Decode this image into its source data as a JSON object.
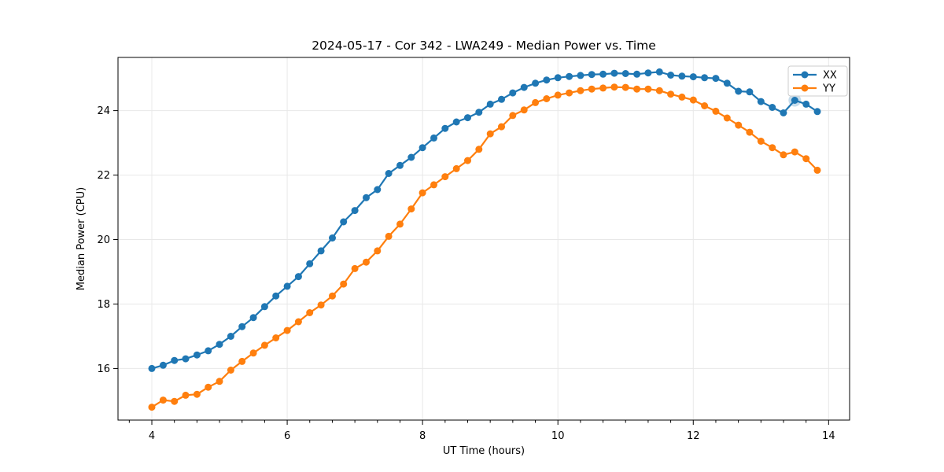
{
  "chart_data": {
    "type": "line",
    "title": "2024-05-17 - Cor 342 - LWA249 - Median Power vs. Time",
    "xlabel": "UT Time (hours)",
    "ylabel": "Median Power (CPU)",
    "xlim": [
      3.5,
      14.31
    ],
    "ylim": [
      14.4,
      25.65
    ],
    "xticks": [
      4,
      6,
      8,
      10,
      12,
      14
    ],
    "yticks": [
      16,
      18,
      20,
      22,
      24
    ],
    "minor_xticks_per_major": 6,
    "grid": true,
    "legend": {
      "position": "upper right",
      "entries": [
        "XX",
        "YY"
      ]
    },
    "x": [
      4.0,
      4.167,
      4.333,
      4.5,
      4.667,
      4.833,
      5.0,
      5.167,
      5.333,
      5.5,
      5.667,
      5.833,
      6.0,
      6.167,
      6.333,
      6.5,
      6.667,
      6.833,
      7.0,
      7.167,
      7.333,
      7.5,
      7.667,
      7.833,
      8.0,
      8.167,
      8.333,
      8.5,
      8.667,
      8.833,
      9.0,
      9.167,
      9.333,
      9.5,
      9.667,
      9.833,
      10.0,
      10.167,
      10.333,
      10.5,
      10.667,
      10.833,
      11.0,
      11.167,
      11.333,
      11.5,
      11.667,
      11.833,
      12.0,
      12.167,
      12.333,
      12.5,
      12.667,
      12.833,
      13.0,
      13.167,
      13.333,
      13.5,
      13.667,
      13.833
    ],
    "series": [
      {
        "name": "XX",
        "color": "#1f77b4",
        "values": [
          16.0,
          16.1,
          16.25,
          16.3,
          16.42,
          16.55,
          16.75,
          17.0,
          17.3,
          17.58,
          17.92,
          18.25,
          18.55,
          18.85,
          19.25,
          19.65,
          20.05,
          20.55,
          20.9,
          21.3,
          21.55,
          22.05,
          22.3,
          22.55,
          22.85,
          23.15,
          23.45,
          23.65,
          23.78,
          23.95,
          24.2,
          24.35,
          24.55,
          24.72,
          24.85,
          24.95,
          25.02,
          25.06,
          25.09,
          25.12,
          25.13,
          25.16,
          25.15,
          25.13,
          25.17,
          25.2,
          25.1,
          25.07,
          25.05,
          25.02,
          25.0,
          24.85,
          24.6,
          24.58,
          24.28,
          24.1,
          23.93,
          24.32,
          24.2,
          23.97
        ]
      },
      {
        "name": "YY",
        "color": "#ff7f0e",
        "values": [
          14.8,
          15.02,
          14.98,
          15.17,
          15.2,
          15.42,
          15.6,
          15.95,
          16.22,
          16.48,
          16.72,
          16.95,
          17.18,
          17.45,
          17.73,
          17.97,
          18.25,
          18.62,
          19.1,
          19.3,
          19.65,
          20.1,
          20.48,
          20.95,
          21.45,
          21.7,
          21.95,
          22.2,
          22.45,
          22.8,
          23.28,
          23.5,
          23.85,
          24.02,
          24.25,
          24.37,
          24.48,
          24.55,
          24.62,
          24.67,
          24.7,
          24.73,
          24.72,
          24.67,
          24.67,
          24.62,
          24.51,
          24.42,
          24.33,
          24.15,
          23.98,
          23.77,
          23.55,
          23.33,
          23.05,
          22.85,
          22.63,
          22.72,
          22.51,
          22.15
        ]
      }
    ],
    "highlight": {
      "series": "XX",
      "x": 13.5,
      "y": 24.32,
      "radius": 8,
      "opacity": 0.25
    },
    "style": {
      "line_width": 2.2,
      "marker_radius": 4.5,
      "grid_color": "#e8e8e8",
      "spine_color": "#000000",
      "legend_border_color": "#cccccc",
      "legend_bg": "#ffffff"
    }
  }
}
